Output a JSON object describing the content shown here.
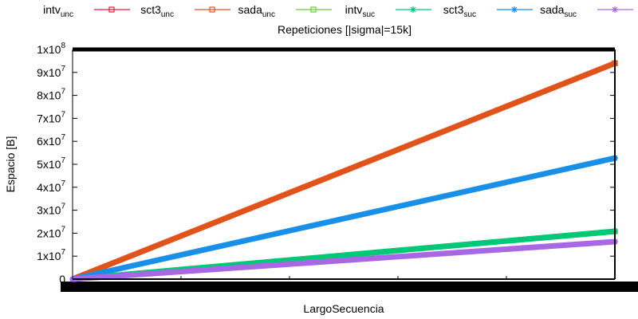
{
  "chart_data": {
    "type": "line",
    "title": "Repeticiones [|sigma|=15k]",
    "xlabel": "LargoSecuencia",
    "ylabel": "Espacio [B]",
    "ylim": [
      0,
      100000000
    ],
    "xlim": [
      0,
      1
    ],
    "grid": false,
    "legend_position": "top",
    "y_ticks": [
      {
        "value": 0,
        "base": "0",
        "exp": ""
      },
      {
        "value": 10000000,
        "base": "1x10",
        "exp": "7"
      },
      {
        "value": 20000000,
        "base": "2x10",
        "exp": "7"
      },
      {
        "value": 30000000,
        "base": "3x10",
        "exp": "7"
      },
      {
        "value": 40000000,
        "base": "4x10",
        "exp": "7"
      },
      {
        "value": 50000000,
        "base": "5x10",
        "exp": "7"
      },
      {
        "value": 60000000,
        "base": "6x10",
        "exp": "7"
      },
      {
        "value": 70000000,
        "base": "7x10",
        "exp": "7"
      },
      {
        "value": 80000000,
        "base": "8x10",
        "exp": "7"
      },
      {
        "value": 90000000,
        "base": "9x10",
        "exp": "7"
      },
      {
        "value": 100000000,
        "base": "1x10",
        "exp": "8"
      }
    ],
    "series": [
      {
        "name": "intv",
        "sub": "unc",
        "color": "#e8193c",
        "marker": "square",
        "x": [
          0,
          1
        ],
        "y": [
          0,
          94000000
        ]
      },
      {
        "name": "sct3",
        "sub": "unc",
        "color": "#e0541a",
        "marker": "square",
        "x": [
          0,
          1
        ],
        "y": [
          0,
          94000000
        ]
      },
      {
        "name": "sada",
        "sub": "unc",
        "color": "#66cc33",
        "marker": "square",
        "x": [
          0,
          1
        ],
        "y": [
          0,
          20800000
        ]
      },
      {
        "name": "intv",
        "sub": "suc",
        "color": "#00c878",
        "marker": "star",
        "x": [
          0,
          1
        ],
        "y": [
          0,
          20800000
        ]
      },
      {
        "name": "sct3",
        "sub": "suc",
        "color": "#1a8fe8",
        "marker": "star",
        "x": [
          0,
          1
        ],
        "y": [
          0,
          52700000
        ]
      },
      {
        "name": "sada",
        "sub": "suc",
        "color": "#a968e3",
        "marker": "star",
        "x": [
          0,
          1
        ],
        "y": [
          0,
          16300000
        ]
      }
    ]
  }
}
